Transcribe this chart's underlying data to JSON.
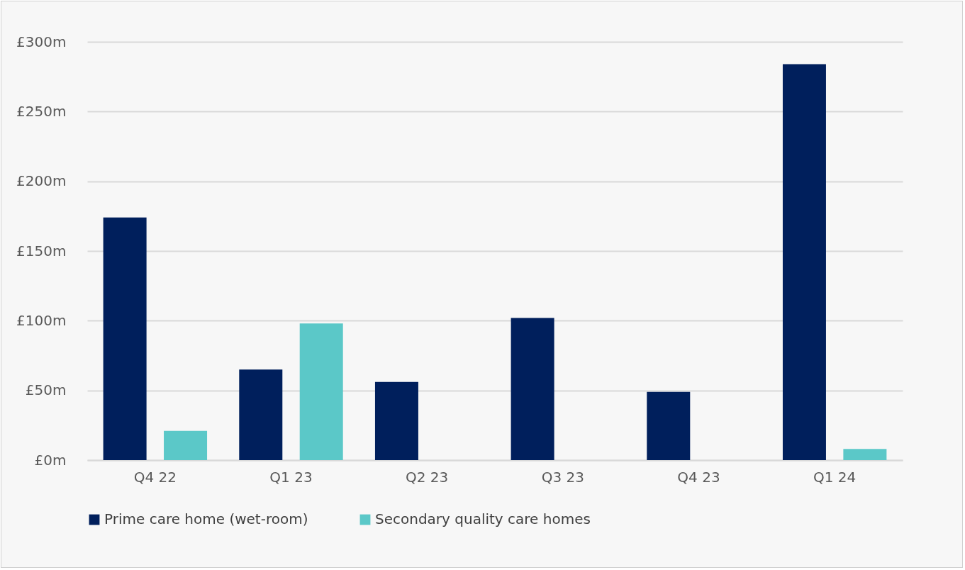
{
  "chart_data": {
    "type": "bar",
    "categories": [
      "Q4 22",
      "Q1 23",
      "Q2 23",
      "Q3 23",
      "Q4 23",
      "Q1 24"
    ],
    "series": [
      {
        "name": "Prime care home (wet-room)",
        "color": "#001f5c",
        "values": [
          174,
          65,
          56,
          102,
          49,
          284
        ]
      },
      {
        "name": "Secondary quality care homes",
        "color": "#5bc8c8",
        "values": [
          21,
          98,
          0,
          0,
          0,
          8
        ]
      }
    ],
    "ylim": [
      0,
      300
    ],
    "yticks": [
      {
        "value": 0,
        "label": "£0m"
      },
      {
        "value": 50,
        "label": "£50m"
      },
      {
        "value": 100,
        "label": "£100m"
      },
      {
        "value": 150,
        "label": "£150m"
      },
      {
        "value": 200,
        "label": "£200m"
      },
      {
        "value": 250,
        "label": "£250m"
      },
      {
        "value": 300,
        "label": "£300m"
      }
    ],
    "grid": "y",
    "legend": "bottom"
  }
}
